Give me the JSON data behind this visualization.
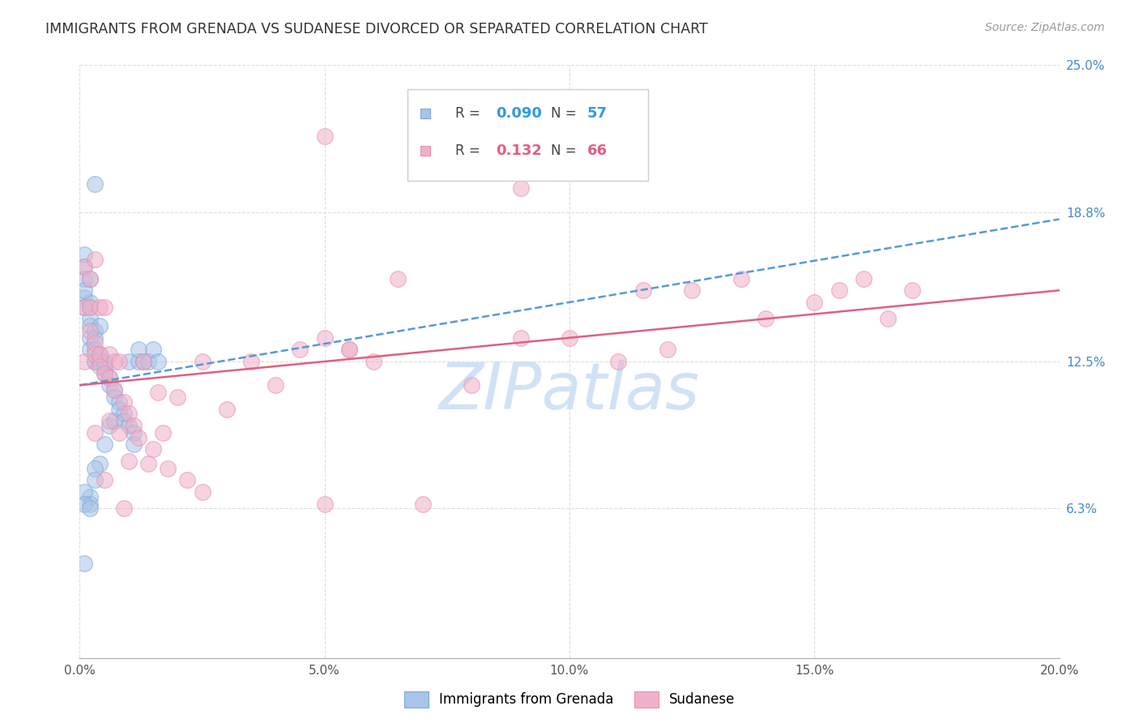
{
  "title": "IMMIGRANTS FROM GRENADA VS SUDANESE DIVORCED OR SEPARATED CORRELATION CHART",
  "source": "Source: ZipAtlas.com",
  "xlabel_ticks": [
    "0.0%",
    "",
    "5.0%",
    "",
    "10.0%",
    "",
    "15.0%",
    "",
    "20.0%"
  ],
  "xlabel_vals": [
    0.0,
    0.025,
    0.05,
    0.075,
    0.1,
    0.125,
    0.15,
    0.175,
    0.2
  ],
  "xlabel_show": [
    0.0,
    0.05,
    0.1,
    0.15,
    0.2
  ],
  "xlabel_show_labels": [
    "0.0%",
    "5.0%",
    "10.0%",
    "15.0%",
    "20.0%"
  ],
  "ylabel_vals": [
    0.063,
    0.125,
    0.188,
    0.25
  ],
  "ylabel_ticks": [
    "6.3%",
    "12.5%",
    "18.8%",
    "25.0%"
  ],
  "xlim": [
    0.0,
    0.2
  ],
  "ylim": [
    0.0,
    0.25
  ],
  "series1_name": "Immigrants from Grenada",
  "series2_name": "Sudanese",
  "series1_color": "#a8c4e8",
  "series2_color": "#f0b0c8",
  "series1_edge": "#7aaad8",
  "series2_edge": "#e890b0",
  "series1_R": 0.09,
  "series2_R": 0.132,
  "watermark": "ZIPatlas",
  "watermark_color": "#c8ddf5",
  "background_color": "#ffffff",
  "grid_color": "#dddddd",
  "title_color": "#333333",
  "source_color": "#999999",
  "blue_line_color": "#5599dd",
  "pink_line_color": "#e06080",
  "blue_points_x": [
    0.001,
    0.001,
    0.001,
    0.001,
    0.001,
    0.001,
    0.002,
    0.002,
    0.002,
    0.002,
    0.002,
    0.002,
    0.002,
    0.003,
    0.003,
    0.003,
    0.003,
    0.003,
    0.004,
    0.004,
    0.004,
    0.004,
    0.005,
    0.005,
    0.005,
    0.005,
    0.006,
    0.006,
    0.006,
    0.007,
    0.007,
    0.007,
    0.008,
    0.008,
    0.009,
    0.009,
    0.01,
    0.01,
    0.011,
    0.011,
    0.012,
    0.012,
    0.013,
    0.014,
    0.015,
    0.016,
    0.001,
    0.002,
    0.003,
    0.003,
    0.004,
    0.005,
    0.001,
    0.002,
    0.003,
    0.001,
    0.002
  ],
  "blue_points_y": [
    0.17,
    0.165,
    0.16,
    0.152,
    0.148,
    0.04,
    0.15,
    0.148,
    0.143,
    0.14,
    0.135,
    0.13,
    0.068,
    0.138,
    0.135,
    0.13,
    0.125,
    0.2,
    0.128,
    0.126,
    0.125,
    0.082,
    0.123,
    0.122,
    0.12,
    0.09,
    0.118,
    0.115,
    0.098,
    0.113,
    0.11,
    0.1,
    0.108,
    0.105,
    0.103,
    0.1,
    0.098,
    0.125,
    0.095,
    0.09,
    0.125,
    0.13,
    0.125,
    0.125,
    0.13,
    0.125,
    0.155,
    0.16,
    0.125,
    0.08,
    0.14,
    0.125,
    0.07,
    0.065,
    0.075,
    0.065,
    0.063
  ],
  "pink_points_x": [
    0.001,
    0.001,
    0.001,
    0.002,
    0.002,
    0.002,
    0.003,
    0.003,
    0.003,
    0.003,
    0.004,
    0.004,
    0.004,
    0.005,
    0.005,
    0.005,
    0.006,
    0.006,
    0.006,
    0.007,
    0.007,
    0.008,
    0.008,
    0.009,
    0.009,
    0.01,
    0.01,
    0.011,
    0.012,
    0.013,
    0.014,
    0.015,
    0.016,
    0.017,
    0.018,
    0.02,
    0.022,
    0.025,
    0.025,
    0.03,
    0.035,
    0.04,
    0.045,
    0.05,
    0.05,
    0.055,
    0.055,
    0.06,
    0.065,
    0.07,
    0.08,
    0.09,
    0.1,
    0.11,
    0.115,
    0.12,
    0.125,
    0.135,
    0.14,
    0.15,
    0.155,
    0.16,
    0.165,
    0.17,
    0.05,
    0.09
  ],
  "pink_points_y": [
    0.165,
    0.148,
    0.125,
    0.16,
    0.148,
    0.138,
    0.168,
    0.133,
    0.128,
    0.095,
    0.148,
    0.128,
    0.123,
    0.148,
    0.12,
    0.075,
    0.128,
    0.118,
    0.1,
    0.125,
    0.113,
    0.125,
    0.095,
    0.108,
    0.063,
    0.103,
    0.083,
    0.098,
    0.093,
    0.125,
    0.082,
    0.088,
    0.112,
    0.095,
    0.08,
    0.11,
    0.075,
    0.125,
    0.07,
    0.105,
    0.125,
    0.115,
    0.13,
    0.065,
    0.135,
    0.13,
    0.13,
    0.125,
    0.16,
    0.065,
    0.115,
    0.135,
    0.135,
    0.125,
    0.155,
    0.13,
    0.155,
    0.16,
    0.143,
    0.15,
    0.155,
    0.16,
    0.143,
    0.155,
    0.22,
    0.198
  ]
}
